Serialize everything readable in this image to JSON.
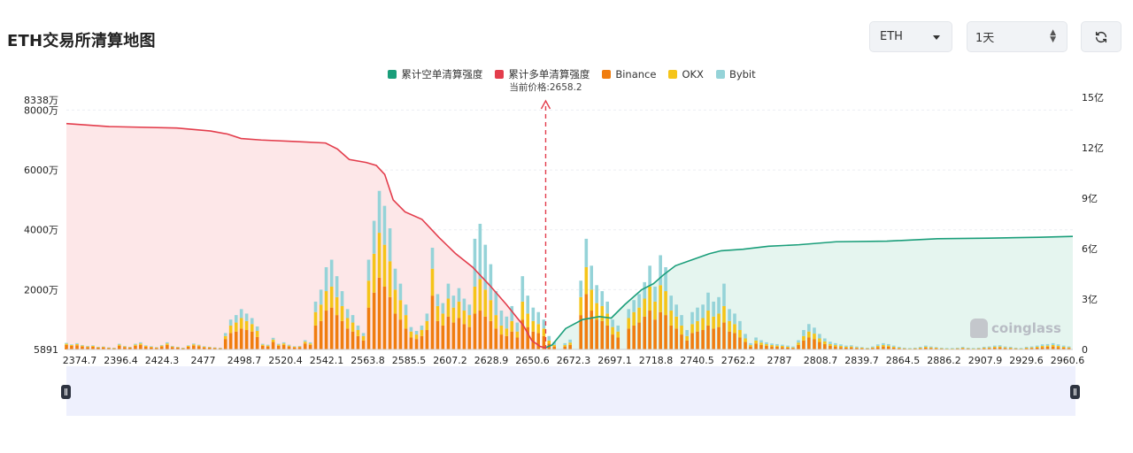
{
  "header": {
    "title": "ETH交易所清算地图"
  },
  "controls": {
    "symbol": "ETH",
    "timeframe": "1天"
  },
  "legend": [
    {
      "label": "累计空单清算强度",
      "color": "#1a9e7a"
    },
    {
      "label": "累计多单清算强度",
      "color": "#e33d4c"
    },
    {
      "label": "Binance",
      "color": "#f07d0f"
    },
    {
      "label": "OKX",
      "color": "#f5c419"
    },
    {
      "label": "Bybit",
      "color": "#95d3d8"
    }
  ],
  "watermark": "coinglass",
  "chart_data": {
    "type": "bar",
    "current_price_label": "当前价格:2658.2",
    "current_price": 2658.2,
    "x_tick_labels": [
      "2374.7",
      "2396.4",
      "2424.3",
      "2477",
      "2498.7",
      "2520.4",
      "2542.1",
      "2563.8",
      "2585.5",
      "2607.2",
      "2628.9",
      "2650.6",
      "2672.3",
      "2697.1",
      "2718.8",
      "2740.5",
      "2762.2",
      "2787",
      "2808.7",
      "2839.7",
      "2864.5",
      "2886.2",
      "2907.9",
      "2929.6",
      "2960.6"
    ],
    "y_left_ticks": [
      "5891",
      "2000万",
      "4000万",
      "6000万",
      "8000万",
      "8338万"
    ],
    "y_right_ticks": [
      "0",
      "3亿",
      "6亿",
      "9亿",
      "12亿",
      "15亿"
    ],
    "bars_x": [
      2374.7,
      2377.8,
      2381,
      2384.1,
      2387.3,
      2390.4,
      2393.5,
      2396.6,
      2399.8,
      2402.9,
      2406,
      2409.2,
      2412.3,
      2415.5,
      2418.6,
      2421.7,
      2424.9,
      2428,
      2431.1,
      2434.3,
      2437.4,
      2440.6,
      2443.7,
      2446.8,
      2450,
      2453.1,
      2456.2,
      2459.4,
      2462.5,
      2465.7,
      2468.8,
      2471.9,
      2475.1,
      2478.2,
      2481.3,
      2484.5,
      2487.6,
      2490.8,
      2493.9,
      2497,
      2500.2,
      2503.3,
      2506.4,
      2509.6,
      2512.7,
      2515.9,
      2519,
      2522.1,
      2525.3,
      2528.4,
      2531.6,
      2534.7,
      2537.8,
      2541,
      2544.1,
      2547.2,
      2550.4,
      2553.5,
      2556.7,
      2559.8,
      2562.9,
      2566.1,
      2569.2,
      2572.3,
      2575.5,
      2578.6,
      2581.8,
      2584.9,
      2588,
      2591.2,
      2594.3,
      2597.4,
      2600.6,
      2603.7,
      2606.9,
      2610,
      2613.1,
      2616.3,
      2619.4,
      2622.5,
      2625.7,
      2628.8,
      2632,
      2635.1,
      2638.2,
      2641.4,
      2644.5,
      2647.6,
      2650.8,
      2653.9,
      2657.1,
      2660.2,
      2663.3,
      2666.5,
      2669.6,
      2672.7,
      2675.9,
      2679,
      2682.2,
      2685.3,
      2688.4,
      2691.6,
      2694.7,
      2697.8,
      2701,
      2704.1,
      2707.3,
      2710.4,
      2713.5,
      2716.7,
      2719.8,
      2722.9,
      2726.1,
      2729.2,
      2732.4,
      2735.5,
      2738.6,
      2741.8,
      2744.9,
      2748,
      2751.2,
      2754.3,
      2757.5,
      2760.6,
      2763.7,
      2766.9,
      2770,
      2773.1,
      2776.3,
      2779.4,
      2782.6,
      2785.7,
      2788.8,
      2792,
      2795.1,
      2798.2,
      2801.4,
      2804.5,
      2807.7,
      2810.8,
      2813.9,
      2817.1,
      2820.2,
      2823.3,
      2826.5,
      2829.6,
      2832.8,
      2835.9,
      2839,
      2842.2,
      2845.3,
      2848.5,
      2851.6,
      2854.7,
      2857.9,
      2861,
      2864.1,
      2867.3,
      2870.4,
      2873.6,
      2876.7,
      2879.8,
      2883,
      2886.1,
      2889.2,
      2892.4,
      2895.5,
      2898.7,
      2901.8,
      2904.9,
      2908.1,
      2911.2,
      2914.3,
      2917.5,
      2920.6,
      2923.8,
      2926.9,
      2930,
      2933.2,
      2936.3,
      2939.4,
      2942.6,
      2945.7,
      2948.9,
      2952,
      2955.1,
      2958.3,
      2961.4,
      2964.6,
      2967.7
    ],
    "series": [
      {
        "name": "Binance",
        "unit": "万",
        "values": [
          150,
          120,
          140,
          100,
          80,
          90,
          60,
          70,
          50,
          40,
          120,
          80,
          60,
          120,
          150,
          90,
          70,
          50,
          100,
          150,
          80,
          60,
          40,
          90,
          130,
          110,
          70,
          60,
          50,
          40,
          350,
          550,
          600,
          700,
          650,
          600,
          420,
          120,
          100,
          250,
          120,
          150,
          100,
          70,
          80,
          200,
          150,
          800,
          950,
          1300,
          1400,
          1150,
          950,
          700,
          600,
          450,
          300,
          1400,
          1900,
          2400,
          2100,
          1750,
          1200,
          1000,
          700,
          400,
          350,
          450,
          650,
          1800,
          950,
          800,
          1100,
          900,
          1050,
          850,
          750,
          1200,
          1300,
          1100,
          950,
          700,
          500,
          450,
          600,
          400,
          1000,
          750,
          600,
          550,
          450,
          200,
          100,
          0,
          100,
          150,
          0,
          1150,
          1850,
          1300,
          1000,
          950,
          800,
          500,
          400,
          0,
          700,
          800,
          900,
          1100,
          1300,
          1000,
          1250,
          1150,
          800,
          700,
          500,
          300,
          550,
          600,
          650,
          800,
          700,
          750,
          900,
          600,
          550,
          400,
          250,
          100,
          200,
          150,
          120,
          100,
          90,
          80,
          60,
          50,
          150,
          300,
          400,
          350,
          250,
          180,
          120,
          100,
          80,
          60,
          70,
          50,
          40,
          30,
          50,
          80,
          100,
          90,
          60,
          40,
          30,
          20,
          30,
          40,
          60,
          50,
          40,
          30,
          20,
          20,
          30,
          40,
          30,
          20,
          30,
          40,
          50,
          60,
          70,
          50,
          40,
          30,
          20,
          40,
          50,
          60,
          80,
          90,
          100,
          80,
          60,
          50,
          40,
          30,
          20,
          40,
          60
        ]
      },
      {
        "name": "OKX",
        "unit": "万",
        "values": [
          40,
          30,
          40,
          30,
          20,
          30,
          20,
          20,
          10,
          10,
          40,
          20,
          20,
          40,
          50,
          30,
          20,
          20,
          30,
          50,
          20,
          20,
          10,
          30,
          40,
          30,
          20,
          20,
          10,
          10,
          100,
          250,
          300,
          350,
          300,
          250,
          200,
          40,
          30,
          80,
          40,
          50,
          30,
          20,
          20,
          60,
          50,
          450,
          550,
          650,
          700,
          600,
          500,
          350,
          300,
          200,
          150,
          900,
          1300,
          1500,
          1400,
          1200,
          800,
          650,
          450,
          200,
          150,
          200,
          300,
          900,
          500,
          400,
          600,
          500,
          550,
          450,
          400,
          900,
          1050,
          900,
          700,
          450,
          300,
          250,
          350,
          200,
          600,
          450,
          350,
          300,
          250,
          100,
          50,
          0,
          50,
          80,
          0,
          600,
          900,
          700,
          550,
          500,
          400,
          250,
          200,
          0,
          350,
          450,
          500,
          600,
          800,
          600,
          900,
          800,
          500,
          400,
          300,
          150,
          300,
          350,
          400,
          500,
          400,
          450,
          550,
          350,
          300,
          250,
          120,
          50,
          100,
          80,
          60,
          50,
          40,
          40,
          30,
          20,
          80,
          150,
          200,
          180,
          120,
          90,
          60,
          50,
          40,
          30,
          30,
          20,
          20,
          10,
          20,
          40,
          50,
          40,
          30,
          20,
          10,
          10,
          10,
          20,
          30,
          20,
          20,
          10,
          10,
          10,
          10,
          20,
          10,
          10,
          10,
          20,
          20,
          30,
          30,
          20,
          20,
          10,
          10,
          20,
          20,
          30,
          40,
          40,
          50,
          40,
          30,
          20,
          20,
          10,
          10,
          20,
          30
        ]
      },
      {
        "name": "Bybit",
        "unit": "万",
        "values": [
          30,
          20,
          30,
          20,
          20,
          20,
          10,
          10,
          10,
          10,
          30,
          20,
          10,
          30,
          40,
          20,
          20,
          10,
          20,
          40,
          20,
          10,
          10,
          20,
          30,
          20,
          20,
          10,
          10,
          10,
          100,
          200,
          250,
          300,
          250,
          200,
          150,
          30,
          30,
          60,
          30,
          40,
          30,
          20,
          20,
          50,
          40,
          350,
          500,
          800,
          900,
          700,
          500,
          300,
          250,
          150,
          100,
          700,
          1100,
          1400,
          1300,
          1100,
          700,
          550,
          350,
          150,
          120,
          150,
          250,
          700,
          400,
          350,
          500,
          400,
          450,
          400,
          350,
          1600,
          1850,
          1500,
          1200,
          800,
          500,
          400,
          500,
          300,
          850,
          600,
          450,
          400,
          300,
          150,
          100,
          0,
          60,
          100,
          0,
          550,
          950,
          800,
          600,
          500,
          400,
          250,
          200,
          0,
          300,
          400,
          450,
          550,
          700,
          500,
          1000,
          800,
          500,
          400,
          350,
          200,
          400,
          450,
          450,
          600,
          500,
          550,
          750,
          400,
          350,
          300,
          150,
          60,
          100,
          80,
          60,
          50,
          50,
          40,
          40,
          30,
          80,
          200,
          250,
          200,
          150,
          100,
          80,
          60,
          50,
          40,
          40,
          30,
          20,
          20,
          30,
          50,
          60,
          50,
          40,
          30,
          20,
          20,
          20,
          30,
          40,
          30,
          20,
          20,
          20,
          20,
          20,
          30,
          20,
          20,
          20,
          30,
          30,
          40,
          40,
          30,
          30,
          20,
          20,
          30,
          30,
          40,
          50,
          50,
          60,
          50,
          40,
          30,
          20,
          20,
          20,
          30,
          40
        ]
      },
      {
        "name": "累计多单清算强度",
        "unit": "万",
        "points": [
          [
            2374.7,
            7550
          ],
          [
            2400,
            7450
          ],
          [
            2440,
            7400
          ],
          [
            2460,
            7300
          ],
          [
            2470,
            7200
          ],
          [
            2478,
            7050
          ],
          [
            2490,
            7000
          ],
          [
            2510,
            6950
          ],
          [
            2528,
            6900
          ],
          [
            2535,
            6700
          ],
          [
            2542,
            6350
          ],
          [
            2552,
            6250
          ],
          [
            2558,
            6150
          ],
          [
            2563,
            5850
          ],
          [
            2568,
            5000
          ],
          [
            2575,
            4600
          ],
          [
            2585,
            4350
          ],
          [
            2595,
            3750
          ],
          [
            2605,
            3200
          ],
          [
            2615,
            2750
          ],
          [
            2625,
            2150
          ],
          [
            2635,
            1500
          ],
          [
            2645,
            800
          ],
          [
            2650,
            300
          ],
          [
            2655,
            100
          ],
          [
            2658,
            60
          ]
        ]
      },
      {
        "name": "累计空单清算强度",
        "unit": "万",
        "points": [
          [
            2658,
            60
          ],
          [
            2662,
            150
          ],
          [
            2670,
            700
          ],
          [
            2680,
            1000
          ],
          [
            2690,
            1100
          ],
          [
            2697,
            1050
          ],
          [
            2705,
            1500
          ],
          [
            2715,
            2000
          ],
          [
            2722,
            2200
          ],
          [
            2728,
            2500
          ],
          [
            2735,
            2800
          ],
          [
            2745,
            3000
          ],
          [
            2755,
            3200
          ],
          [
            2762,
            3300
          ],
          [
            2775,
            3350
          ],
          [
            2790,
            3450
          ],
          [
            2808,
            3500
          ],
          [
            2830,
            3600
          ],
          [
            2860,
            3620
          ],
          [
            2890,
            3700
          ],
          [
            2920,
            3720
          ],
          [
            2950,
            3750
          ],
          [
            2970,
            3780
          ]
        ]
      }
    ],
    "ylim_left": [
      0,
      8338
    ],
    "ylim_right": [
      0,
      15
    ],
    "xlim": [
      2374.7,
      2970
    ]
  }
}
